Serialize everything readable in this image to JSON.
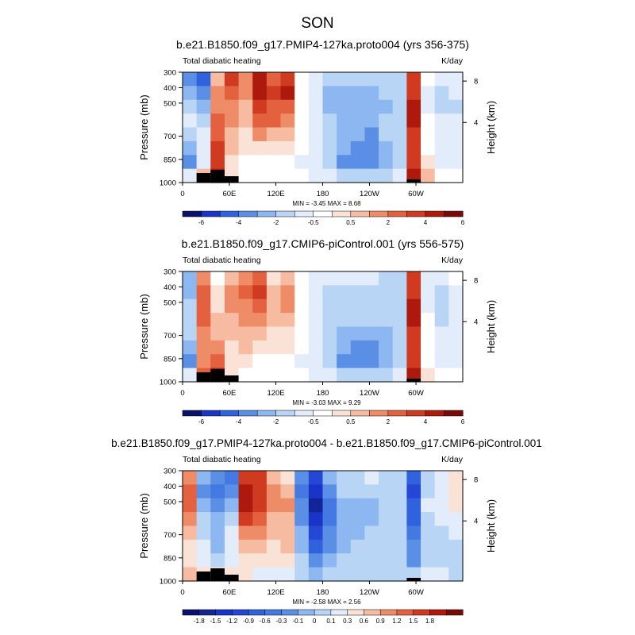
{
  "figure": {
    "title": "SON"
  },
  "chart_data": [
    {
      "type": "heatmap",
      "title": "b.e21.B1850.f09_g17.PMIP4-127ka.proto004 (yrs 356-375)",
      "left_label": "Total diabatic heating",
      "units": "K/day",
      "ylabel": "Pressure (mb)",
      "ylabel_right": "Height (km)",
      "x_ticks": [
        "0",
        "60E",
        "120E",
        "180",
        "120W",
        "60W"
      ],
      "y_ticks": [
        "300",
        "400",
        "500",
        "700",
        "850",
        "1000"
      ],
      "y_right_ticks": [
        "8",
        "4"
      ],
      "stats": "MIN =  -3.45   MAX =   8.68",
      "colorbar": {
        "labels": [
          "-6",
          "-4",
          "-2",
          "-0.5",
          "0.5",
          "2",
          "4",
          "6"
        ],
        "colors": [
          "#08126b",
          "#1a34c8",
          "#2f62dc",
          "#5b8fe6",
          "#8db7f0",
          "#b9d5f6",
          "#e2ecfa",
          "#ffffff",
          "#fbe2d6",
          "#f6bba0",
          "#ef8c68",
          "#e4613f",
          "#cf3a20",
          "#ad1a0d",
          "#7a0a05"
        ]
      },
      "field": [
        [
          3,
          2,
          9,
          12,
          10,
          13,
          11,
          12,
          7,
          6,
          5,
          5,
          5,
          5,
          5,
          5,
          12,
          7,
          6,
          6
        ],
        [
          4,
          3,
          10,
          11,
          10,
          13,
          12,
          13,
          7,
          6,
          4,
          4,
          4,
          4,
          5,
          5,
          12,
          6,
          5,
          6
        ],
        [
          5,
          4,
          10,
          10,
          9,
          12,
          11,
          11,
          7,
          6,
          4,
          4,
          4,
          4,
          4,
          5,
          13,
          6,
          5,
          5
        ],
        [
          6,
          5,
          11,
          10,
          9,
          11,
          11,
          10,
          7,
          6,
          5,
          4,
          4,
          4,
          5,
          5,
          13,
          7,
          6,
          6
        ],
        [
          5,
          6,
          11,
          9,
          8,
          10,
          9,
          9,
          7,
          6,
          5,
          4,
          4,
          3,
          5,
          5,
          12,
          7,
          6,
          6
        ],
        [
          4,
          6,
          12,
          9,
          8,
          8,
          8,
          8,
          7,
          6,
          5,
          4,
          3,
          3,
          4,
          5,
          12,
          7,
          6,
          6
        ],
        [
          3,
          6,
          12,
          8,
          7,
          7,
          7,
          7,
          6,
          6,
          5,
          3,
          3,
          3,
          4,
          5,
          12,
          8,
          6,
          6
        ],
        [
          6,
          9,
          13,
          8,
          7,
          7,
          7,
          7,
          7,
          6,
          6,
          5,
          5,
          5,
          5,
          6,
          13,
          9,
          7,
          7
        ]
      ],
      "terrain": [
        0,
        3,
        4,
        2,
        0,
        0,
        0,
        0,
        0,
        0,
        0,
        0,
        0,
        0,
        0,
        0,
        1,
        0,
        0,
        0
      ]
    },
    {
      "type": "heatmap",
      "title": "b.e21.B1850.f09_g17.CMIP6-piControl.001 (yrs 556-575)",
      "left_label": "Total diabatic heating",
      "units": "K/day",
      "ylabel": "Pressure (mb)",
      "ylabel_right": "Height (km)",
      "x_ticks": [
        "0",
        "60E",
        "120E",
        "180",
        "120W",
        "60W"
      ],
      "y_ticks": [
        "300",
        "400",
        "500",
        "700",
        "850",
        "1000"
      ],
      "y_right_ticks": [
        "8",
        "4"
      ],
      "stats": "MIN =  -3.03   MAX =   9.29",
      "colorbar": {
        "labels": [
          "-6",
          "-4",
          "-2",
          "-0.5",
          "0.5",
          "2",
          "4",
          "6"
        ],
        "colors": [
          "#08126b",
          "#1a34c8",
          "#2f62dc",
          "#5b8fe6",
          "#8db7f0",
          "#b9d5f6",
          "#e2ecfa",
          "#ffffff",
          "#fbe2d6",
          "#f6bba0",
          "#ef8c68",
          "#e4613f",
          "#cf3a20",
          "#ad1a0d",
          "#7a0a05"
        ]
      },
      "field": [
        [
          4,
          10,
          7,
          9,
          10,
          11,
          8,
          9,
          7,
          6,
          6,
          6,
          6,
          6,
          5,
          5,
          12,
          6,
          6,
          7
        ],
        [
          4,
          11,
          8,
          10,
          11,
          12,
          9,
          10,
          7,
          6,
          5,
          5,
          5,
          5,
          5,
          5,
          12,
          6,
          5,
          6
        ],
        [
          5,
          11,
          8,
          10,
          10,
          11,
          9,
          10,
          7,
          6,
          5,
          5,
          5,
          5,
          5,
          5,
          13,
          6,
          5,
          6
        ],
        [
          5,
          11,
          9,
          9,
          10,
          10,
          9,
          9,
          7,
          6,
          5,
          5,
          5,
          5,
          5,
          5,
          13,
          7,
          5,
          6
        ],
        [
          5,
          10,
          9,
          9,
          9,
          9,
          8,
          8,
          7,
          6,
          5,
          4,
          4,
          4,
          4,
          5,
          12,
          7,
          6,
          6
        ],
        [
          4,
          10,
          10,
          8,
          9,
          8,
          8,
          8,
          7,
          6,
          5,
          4,
          3,
          3,
          4,
          5,
          12,
          7,
          6,
          6
        ],
        [
          3,
          10,
          11,
          8,
          8,
          7,
          7,
          7,
          6,
          6,
          5,
          3,
          3,
          3,
          4,
          5,
          12,
          7,
          6,
          6
        ],
        [
          6,
          11,
          13,
          8,
          7,
          7,
          7,
          7,
          7,
          6,
          6,
          5,
          5,
          5,
          5,
          6,
          13,
          8,
          7,
          7
        ]
      ],
      "terrain": [
        0,
        3,
        4,
        2,
        0,
        0,
        0,
        0,
        0,
        0,
        0,
        0,
        0,
        0,
        0,
        0,
        1,
        0,
        0,
        0
      ]
    },
    {
      "type": "heatmap",
      "title": "b.e21.B1850.f09_g17.PMIP4-127ka.proto004 - b.e21.B1850.f09_g17.CMIP6-piControl.001",
      "left_label": "Total diabatic heating",
      "units": "K/day",
      "ylabel": "Pressure (mb)",
      "ylabel_right": "Height (km)",
      "x_ticks": [
        "0",
        "60E",
        "120E",
        "180",
        "120W",
        "60W"
      ],
      "y_ticks": [
        "300",
        "400",
        "500",
        "700",
        "850",
        "1000"
      ],
      "y_right_ticks": [
        "8",
        "4"
      ],
      "stats": "MIN =  -2.58   MAX =   2.56",
      "colorbar": {
        "labels": [
          "-1.8",
          "-1.5",
          "-1.2",
          "-0.9",
          "-0.6",
          "-0.3",
          "-0.1",
          "0",
          "0.1",
          "0.3",
          "0.6",
          "0.9",
          "1.2",
          "1.5",
          "1.8"
        ],
        "colors": [
          "#08126b",
          "#132596",
          "#1a34c8",
          "#2447d6",
          "#2f62dc",
          "#4579e2",
          "#5b8fe6",
          "#8db7f0",
          "#b9d5f6",
          "#e2ecfa",
          "#fbe2d6",
          "#f6bba0",
          "#ef8c68",
          "#e4613f",
          "#cf3a20",
          "#ad1a0d",
          "#7a0a05"
        ]
      },
      "field": [
        [
          12,
          7,
          6,
          5,
          14,
          14,
          11,
          10,
          6,
          3,
          7,
          8,
          8,
          9,
          8,
          8,
          4,
          8,
          9,
          10
        ],
        [
          13,
          6,
          5,
          6,
          15,
          14,
          12,
          11,
          5,
          2,
          6,
          8,
          8,
          8,
          8,
          8,
          3,
          8,
          9,
          10
        ],
        [
          13,
          7,
          6,
          7,
          15,
          14,
          12,
          12,
          6,
          1,
          5,
          7,
          7,
          7,
          8,
          8,
          4,
          9,
          9,
          10
        ],
        [
          12,
          8,
          7,
          8,
          14,
          13,
          11,
          11,
          6,
          2,
          5,
          7,
          7,
          7,
          8,
          8,
          4,
          8,
          9,
          9
        ],
        [
          11,
          8,
          7,
          9,
          12,
          12,
          11,
          11,
          7,
          3,
          6,
          7,
          7,
          8,
          8,
          8,
          5,
          8,
          8,
          9
        ],
        [
          10,
          9,
          7,
          9,
          11,
          11,
          10,
          11,
          7,
          4,
          6,
          7,
          8,
          8,
          8,
          8,
          6,
          8,
          8,
          8
        ],
        [
          10,
          9,
          8,
          9,
          10,
          10,
          10,
          10,
          8,
          6,
          7,
          8,
          8,
          8,
          8,
          8,
          6,
          8,
          8,
          8
        ],
        [
          11,
          10,
          10,
          10,
          10,
          9,
          9,
          9,
          8,
          7,
          8,
          8,
          8,
          8,
          8,
          8,
          8,
          9,
          9,
          8
        ]
      ],
      "terrain": [
        0,
        3,
        4,
        2,
        0,
        0,
        0,
        0,
        0,
        0,
        0,
        0,
        0,
        0,
        0,
        0,
        1,
        0,
        0,
        0
      ]
    }
  ]
}
